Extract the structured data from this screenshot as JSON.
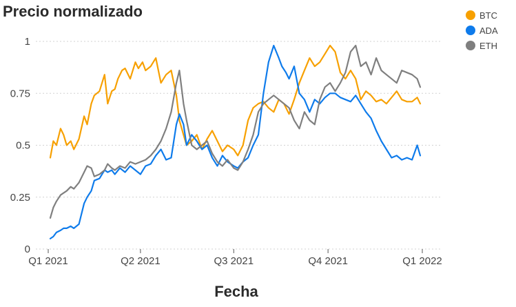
{
  "chart_data": {
    "type": "line",
    "title": "Precio normalizado",
    "xlabel": "Fecha",
    "ylabel": "",
    "ylim": [
      0,
      1
    ],
    "xlim": [
      0,
      365
    ],
    "yticks": [
      {
        "value": 0,
        "label": "0"
      },
      {
        "value": 0.25,
        "label": "0.25"
      },
      {
        "value": 0.5,
        "label": "0.5"
      },
      {
        "value": 0.75,
        "label": "0.75"
      },
      {
        "value": 1,
        "label": "1"
      }
    ],
    "xticks": [
      {
        "value": 0,
        "label": "Q1 2021"
      },
      {
        "value": 90,
        "label": "Q2 2021"
      },
      {
        "value": 181,
        "label": "Q3 2021"
      },
      {
        "value": 273,
        "label": "Q4 2021"
      },
      {
        "value": 365,
        "label": "Q1 2022"
      }
    ],
    "grid": true,
    "legend": "top-right",
    "series": [
      {
        "name": "BTC",
        "color": "#F7A000",
        "x": [
          2,
          5,
          8,
          12,
          15,
          18,
          22,
          25,
          30,
          35,
          38,
          42,
          45,
          50,
          55,
          58,
          62,
          65,
          68,
          72,
          75,
          80,
          85,
          88,
          92,
          95,
          100,
          105,
          110,
          115,
          120,
          125,
          128,
          132,
          135,
          140,
          145,
          150,
          155,
          160,
          165,
          170,
          175,
          181,
          185,
          190,
          195,
          200,
          205,
          210,
          215,
          220,
          225,
          230,
          235,
          240,
          245,
          250,
          255,
          260,
          265,
          270,
          275,
          280,
          285,
          290,
          295,
          300,
          305,
          310,
          315,
          320,
          325,
          330,
          335,
          340,
          345,
          350,
          355,
          360,
          363
        ],
        "y": [
          0.44,
          0.52,
          0.5,
          0.58,
          0.55,
          0.5,
          0.52,
          0.48,
          0.53,
          0.64,
          0.6,
          0.7,
          0.74,
          0.76,
          0.84,
          0.7,
          0.76,
          0.77,
          0.82,
          0.86,
          0.87,
          0.82,
          0.9,
          0.87,
          0.9,
          0.86,
          0.88,
          0.92,
          0.8,
          0.84,
          0.86,
          0.74,
          0.62,
          0.55,
          0.5,
          0.52,
          0.55,
          0.48,
          0.53,
          0.57,
          0.52,
          0.47,
          0.5,
          0.48,
          0.45,
          0.5,
          0.62,
          0.68,
          0.7,
          0.71,
          0.68,
          0.66,
          0.72,
          0.7,
          0.65,
          0.72,
          0.8,
          0.86,
          0.92,
          0.88,
          0.9,
          0.94,
          0.98,
          0.95,
          0.85,
          0.82,
          0.86,
          0.82,
          0.72,
          0.76,
          0.74,
          0.71,
          0.72,
          0.7,
          0.73,
          0.76,
          0.72,
          0.71,
          0.71,
          0.73,
          0.7
        ]
      },
      {
        "name": "ADA",
        "color": "#0E7BEB",
        "x": [
          2,
          5,
          8,
          12,
          15,
          18,
          22,
          25,
          30,
          35,
          38,
          42,
          45,
          50,
          55,
          58,
          62,
          65,
          70,
          75,
          80,
          85,
          90,
          95,
          100,
          105,
          110,
          115,
          120,
          125,
          128,
          132,
          135,
          140,
          145,
          150,
          155,
          160,
          165,
          170,
          175,
          181,
          185,
          190,
          195,
          200,
          205,
          210,
          215,
          220,
          225,
          228,
          232,
          235,
          240,
          245,
          250,
          255,
          260,
          265,
          270,
          275,
          280,
          285,
          290,
          295,
          300,
          305,
          310,
          315,
          320,
          325,
          330,
          335,
          340,
          345,
          350,
          355,
          360,
          363
        ],
        "y": [
          0.05,
          0.06,
          0.08,
          0.09,
          0.1,
          0.1,
          0.11,
          0.1,
          0.12,
          0.22,
          0.25,
          0.28,
          0.33,
          0.34,
          0.38,
          0.37,
          0.38,
          0.36,
          0.39,
          0.37,
          0.4,
          0.38,
          0.36,
          0.4,
          0.41,
          0.45,
          0.48,
          0.43,
          0.44,
          0.6,
          0.65,
          0.6,
          0.5,
          0.55,
          0.52,
          0.48,
          0.5,
          0.44,
          0.4,
          0.45,
          0.42,
          0.4,
          0.39,
          0.42,
          0.44,
          0.5,
          0.55,
          0.75,
          0.9,
          0.98,
          0.92,
          0.88,
          0.85,
          0.82,
          0.88,
          0.75,
          0.72,
          0.66,
          0.72,
          0.7,
          0.73,
          0.75,
          0.75,
          0.73,
          0.72,
          0.71,
          0.74,
          0.7,
          0.66,
          0.63,
          0.57,
          0.52,
          0.48,
          0.44,
          0.45,
          0.43,
          0.44,
          0.43,
          0.5,
          0.45
        ]
      },
      {
        "name": "ETH",
        "color": "#7F7F7F",
        "x": [
          2,
          5,
          8,
          12,
          15,
          18,
          22,
          25,
          30,
          35,
          38,
          42,
          45,
          50,
          55,
          58,
          62,
          65,
          70,
          75,
          80,
          85,
          90,
          95,
          100,
          105,
          110,
          115,
          120,
          125,
          128,
          132,
          135,
          140,
          145,
          150,
          155,
          160,
          165,
          170,
          175,
          181,
          185,
          190,
          195,
          200,
          205,
          210,
          215,
          220,
          225,
          230,
          235,
          240,
          245,
          250,
          255,
          260,
          265,
          270,
          275,
          280,
          285,
          290,
          295,
          300,
          305,
          310,
          315,
          320,
          325,
          330,
          335,
          340,
          345,
          350,
          355,
          360,
          363
        ],
        "y": [
          0.15,
          0.2,
          0.23,
          0.26,
          0.27,
          0.28,
          0.3,
          0.29,
          0.32,
          0.37,
          0.4,
          0.39,
          0.35,
          0.36,
          0.38,
          0.41,
          0.39,
          0.38,
          0.4,
          0.39,
          0.42,
          0.41,
          0.42,
          0.43,
          0.45,
          0.48,
          0.52,
          0.58,
          0.66,
          0.8,
          0.86,
          0.7,
          0.62,
          0.5,
          0.48,
          0.5,
          0.52,
          0.46,
          0.42,
          0.4,
          0.43,
          0.39,
          0.38,
          0.42,
          0.48,
          0.55,
          0.66,
          0.7,
          0.72,
          0.74,
          0.72,
          0.7,
          0.68,
          0.62,
          0.58,
          0.66,
          0.62,
          0.6,
          0.72,
          0.78,
          0.8,
          0.76,
          0.8,
          0.85,
          0.95,
          0.98,
          0.88,
          0.9,
          0.84,
          0.92,
          0.86,
          0.84,
          0.82,
          0.8,
          0.86,
          0.85,
          0.84,
          0.82,
          0.78
        ]
      }
    ]
  }
}
